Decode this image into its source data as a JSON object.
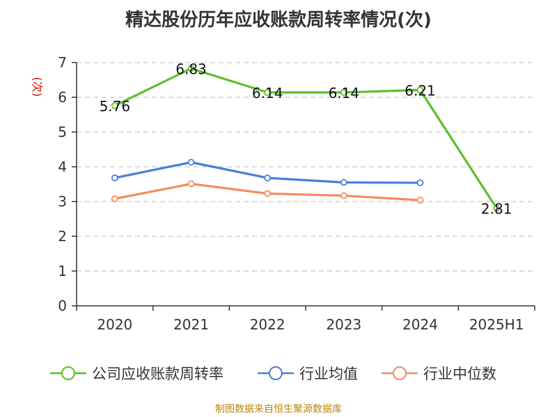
{
  "chart_data": {
    "type": "line",
    "title": "精达股份历年应收账款周转率情况(次)",
    "ylabel": "(次)",
    "categories": [
      "2020",
      "2021",
      "2022",
      "2023",
      "2024",
      "2025H1"
    ],
    "ylim": [
      0,
      7
    ],
    "yticks": [
      0,
      1,
      2,
      3,
      4,
      5,
      6,
      7
    ],
    "grid": true,
    "legend_position": "bottom",
    "series": [
      {
        "name": "公司应收账款周转率",
        "color": "#5cbf2a",
        "values": [
          5.76,
          6.83,
          6.14,
          6.14,
          6.21,
          2.81
        ],
        "labels": [
          "5.76",
          "6.83",
          "6.14",
          "6.14",
          "6.21",
          "2.81"
        ]
      },
      {
        "name": "行业均值",
        "color": "#4a7fd6",
        "values": [
          3.68,
          4.13,
          3.68,
          3.55,
          3.54,
          null
        ]
      },
      {
        "name": "行业中位数",
        "color": "#f58b5b",
        "values": [
          3.08,
          3.51,
          3.23,
          3.17,
          3.04,
          null
        ]
      }
    ]
  },
  "source": "制图数据来自恒生聚源数据库"
}
